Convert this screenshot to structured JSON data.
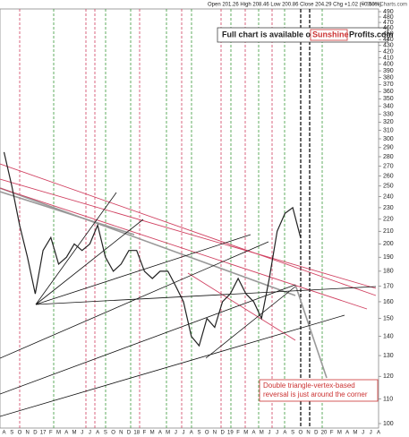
{
  "chart_data": {
    "type": "line",
    "header": "Open 201.26 High 208.46 Low 200.86 Close 204.29 Chg +1.02 (+0.50%)",
    "source": "© StockCharts.com",
    "banner": [
      "Full chart is available on",
      "Sunshine",
      "Profits.com"
    ],
    "annotation": [
      "Double triangle-vertex-based",
      "reversal is just around the corner"
    ],
    "categories": [
      "A",
      "S",
      "O",
      "N",
      "D",
      "17",
      "F",
      "M",
      "A",
      "M",
      "J",
      "J",
      "A",
      "S",
      "O",
      "N",
      "D",
      "18",
      "F",
      "M",
      "A",
      "M",
      "J",
      "J",
      "A",
      "S",
      "O",
      "N",
      "D",
      "19",
      "F",
      "M",
      "A",
      "M",
      "J",
      "J",
      "A",
      "S",
      "O",
      "N",
      "D",
      "20",
      "F",
      "M",
      "A",
      "M",
      "J",
      "J",
      "A"
    ],
    "values": [
      285,
      250,
      215,
      190,
      165,
      195,
      205,
      185,
      190,
      200,
      195,
      200,
      215,
      190,
      180,
      185,
      195,
      195,
      180,
      175,
      180,
      180,
      170,
      160,
      140,
      135,
      150,
      145,
      160,
      165,
      175,
      165,
      160,
      150,
      175,
      210,
      225,
      230,
      205,
      null,
      null,
      null,
      null,
      null,
      null,
      null,
      null,
      null,
      null
    ],
    "color": "#222222",
    "ylim": [
      100,
      490
    ],
    "log": true,
    "yticks": [
      100,
      110,
      120,
      130,
      140,
      150,
      160,
      170,
      180,
      190,
      200,
      210,
      220,
      230,
      240,
      250,
      260,
      270,
      280,
      290,
      300,
      310,
      320,
      330,
      340,
      350,
      360,
      370,
      380,
      390,
      400,
      410,
      420,
      430,
      440,
      450,
      460,
      470,
      480,
      490
    ]
  }
}
